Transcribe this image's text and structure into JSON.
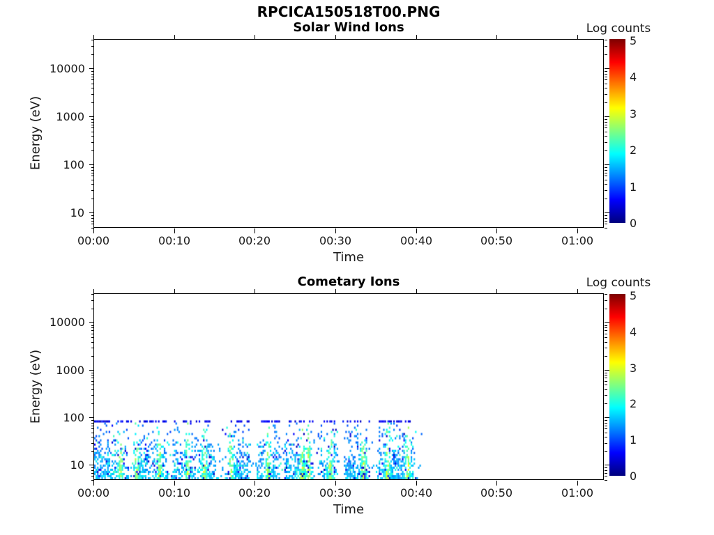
{
  "figure": {
    "title": "RPCICA150518T00.PNG",
    "background_color": "#ffffff",
    "axis_color": "#000000",
    "text_color": "#1a1a1a"
  },
  "x_axis": {
    "label": "Time",
    "tick_labels": [
      "00:00",
      "00:10",
      "00:20",
      "00:30",
      "00:40",
      "00:50",
      "01:00"
    ],
    "tick_minutes": [
      0,
      10,
      20,
      30,
      40,
      50,
      60
    ],
    "range_minutes": [
      0,
      63.3
    ]
  },
  "y_axis": {
    "label": "Energy (eV)",
    "scale": "log",
    "tick_labels": [
      "10",
      "100",
      "1000",
      "10000"
    ],
    "tick_values": [
      10,
      100,
      1000,
      10000
    ],
    "range_ev": [
      4.8,
      40500
    ]
  },
  "colorbar": {
    "title": "Log counts",
    "tick_labels": [
      "5",
      "4",
      "3",
      "2",
      "1",
      "0"
    ],
    "range": [
      0,
      5
    ],
    "colormap": "jet"
  },
  "panels": [
    {
      "title": "Solar Wind Ions",
      "has_data": false
    },
    {
      "title": "Cometary Ions",
      "has_data": true
    }
  ],
  "chart_data": [
    {
      "type": "heatmap",
      "title": "Solar Wind Ions",
      "xlabel": "Time",
      "ylabel": "Energy (eV)",
      "x_tick_labels": [
        "00:00",
        "00:10",
        "00:20",
        "00:30",
        "00:40",
        "00:50",
        "01:00"
      ],
      "y_scale": "log",
      "y_range_ev": [
        4.8,
        40500
      ],
      "colorbar": {
        "label": "Log counts",
        "range": [
          0,
          5
        ],
        "colormap": "jet"
      },
      "values": "empty — no counts shown in this panel"
    },
    {
      "type": "heatmap",
      "title": "Cometary Ions",
      "xlabel": "Time",
      "ylabel": "Energy (eV)",
      "x_tick_labels": [
        "00:00",
        "00:10",
        "00:20",
        "00:30",
        "00:40",
        "00:50",
        "01:00"
      ],
      "y_scale": "log",
      "y_range_ev": [
        4.8,
        40500
      ],
      "colorbar": {
        "label": "Log counts",
        "range": [
          0,
          5
        ],
        "colormap": "jet"
      },
      "data_region": {
        "time_start_min": 0,
        "time_end_min": 40.7,
        "tail_start_min": 39.2,
        "energy_min_ev": 5,
        "energy_max_ev": 85,
        "log_counts_range": [
          0.2,
          3.1
        ],
        "character": "dense blue/cyan noise below ~30 eV, sparse dark-blue speckle 30-85 eV, broken dark-blue cap at ~85 eV, no counts above 85 eV or after 00:40",
        "bright_streak_minutes": [
          3.3,
          5.3,
          8.1,
          11.6,
          13.7,
          17.0,
          21.6,
          25.8,
          26.6,
          29.3,
          33.4,
          36.4,
          38.9
        ],
        "gap_minutes": [
          4.5,
          9.4,
          15.3,
          16.2,
          19.8,
          23.3,
          27.6,
          30.6,
          34.8
        ],
        "columns": 226,
        "rows": 28,
        "noise_seed": 20150518
      }
    }
  ]
}
